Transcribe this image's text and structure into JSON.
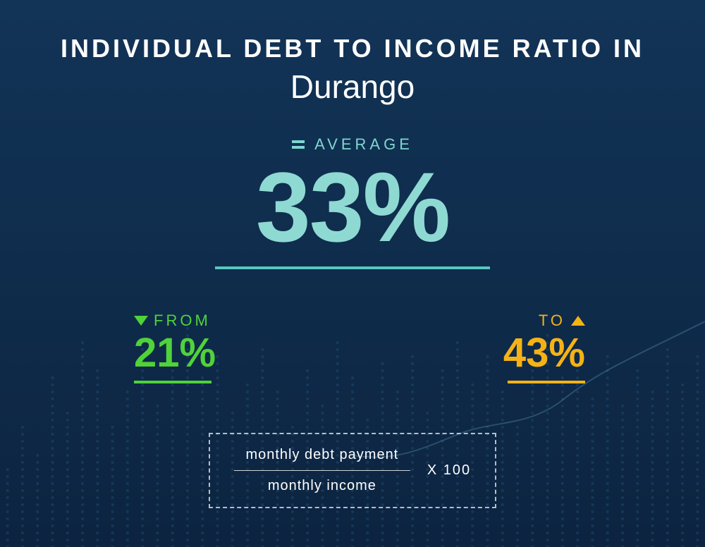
{
  "background": {
    "color": "#0f2b4a",
    "gradient_top": "#123457",
    "gradient_bottom": "#0c2440",
    "dot_color": "#2a5a82",
    "line_color": "#6aa9c9"
  },
  "title": {
    "line1": "INDIVIDUAL  DEBT  TO  INCOME RATIO  IN",
    "line2": "Durango",
    "line1_fontsize": 36,
    "line2_fontsize": 46,
    "color": "#ffffff"
  },
  "average": {
    "label": "AVERAGE",
    "label_fontsize": 22,
    "label_color": "#7fd6d0",
    "value": "33%",
    "value_fontsize": 140,
    "value_color": "#8fd9d3",
    "underline_color": "#57c7bf",
    "equals_color": "#7fd6d0"
  },
  "range": {
    "from": {
      "label": "FROM",
      "label_fontsize": 22,
      "label_color": "#4fd23a",
      "value": "21%",
      "value_fontsize": 58,
      "value_color": "#4fd23a",
      "underline_color": "#4fd23a",
      "triangle_color": "#4fd23a"
    },
    "to": {
      "label": "TO",
      "label_fontsize": 22,
      "label_color": "#f5b216",
      "value": "43%",
      "value_fontsize": 58,
      "value_color": "#f5b216",
      "underline_color": "#f5b216",
      "triangle_color": "#f5b216"
    }
  },
  "formula": {
    "numerator": "monthly debt payment",
    "denominator": "monthly income",
    "multiplier": "X 100",
    "fontsize": 20,
    "color": "#ffffff",
    "border_color": "rgba(255,255,255,0.7)"
  }
}
